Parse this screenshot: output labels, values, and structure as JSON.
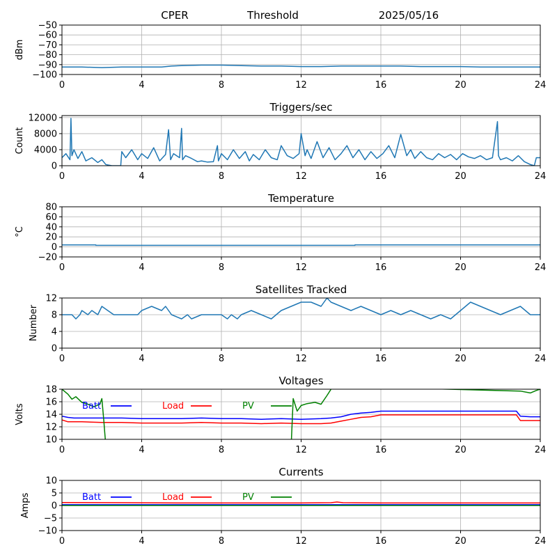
{
  "header": {
    "station": "CPER",
    "mode": "Threshold",
    "date": "2025/05/16"
  },
  "colors": {
    "series_default": "#1f77b4",
    "batt": "#0000ff",
    "load": "#ff0000",
    "pv": "#008000",
    "grid": "#b0b0b0"
  },
  "chart_data": [
    {
      "type": "line",
      "title": "",
      "xlabel": "",
      "ylabel": "dBm",
      "xlim": [
        0,
        24
      ],
      "ylim": [
        -100,
        -50
      ],
      "xticks": [
        0,
        4,
        8,
        12,
        16,
        20,
        24
      ],
      "yticks": [
        -100,
        -90,
        -80,
        -70,
        -60,
        -50
      ],
      "grid": true,
      "series": [
        {
          "color": "#1f77b4",
          "x": [
            0,
            1,
            2,
            3,
            4,
            5,
            5.5,
            6,
            7,
            8,
            9,
            10,
            11,
            12,
            13,
            14,
            15,
            16,
            17,
            18,
            19,
            20,
            21,
            22,
            23,
            24
          ],
          "y": [
            -92.5,
            -92.5,
            -93,
            -92.5,
            -92.5,
            -92.5,
            -91.5,
            -91,
            -90.5,
            -90.5,
            -91,
            -91.5,
            -91.5,
            -92,
            -92,
            -91.5,
            -91.5,
            -91.5,
            -91.5,
            -92,
            -92,
            -92,
            -92.5,
            -92.5,
            -92.5,
            -92.5
          ]
        }
      ]
    },
    {
      "type": "line",
      "title": "Triggers/sec",
      "xlabel": "",
      "ylabel": "Count",
      "xlim": [
        0,
        24
      ],
      "ylim": [
        0,
        12500
      ],
      "xticks": [
        0,
        4,
        8,
        12,
        16,
        20,
        24
      ],
      "yticks": [
        0,
        4000,
        8000,
        12000
      ],
      "grid": true,
      "series": [
        {
          "color": "#1f77b4",
          "x": [
            0,
            0.2,
            0.4,
            0.45,
            0.5,
            0.6,
            0.8,
            1.0,
            1.2,
            1.5,
            1.8,
            2.0,
            2.2,
            2.5,
            2.8,
            2.95,
            3.0,
            3.2,
            3.5,
            3.8,
            4.0,
            4.3,
            4.6,
            4.9,
            5.2,
            5.35,
            5.45,
            5.6,
            5.9,
            6.0,
            6.05,
            6.2,
            6.5,
            6.8,
            7.0,
            7.3,
            7.6,
            7.8,
            7.85,
            8.0,
            8.3,
            8.6,
            8.9,
            9.2,
            9.4,
            9.6,
            9.9,
            10.2,
            10.5,
            10.8,
            11.0,
            11.3,
            11.6,
            11.9,
            12.0,
            12.2,
            12.3,
            12.5,
            12.8,
            13.1,
            13.4,
            13.7,
            14.0,
            14.3,
            14.6,
            14.9,
            15.2,
            15.5,
            15.8,
            16.1,
            16.4,
            16.7,
            17.0,
            17.3,
            17.5,
            17.7,
            18.0,
            18.3,
            18.6,
            18.9,
            19.2,
            19.5,
            19.8,
            20.1,
            20.4,
            20.7,
            21.0,
            21.3,
            21.6,
            21.85,
            21.9,
            22.0,
            22.3,
            22.6,
            22.9,
            23.2,
            23.5,
            23.7,
            23.8,
            24.0
          ],
          "y": [
            2000,
            3000,
            1500,
            11800,
            2500,
            4000,
            1800,
            3500,
            1200,
            2000,
            800,
            1500,
            300,
            0,
            0,
            0,
            3500,
            2000,
            4000,
            1500,
            3000,
            1800,
            4500,
            1200,
            2800,
            9000,
            1500,
            3000,
            2000,
            9300,
            1500,
            2500,
            1800,
            1000,
            1200,
            900,
            1000,
            5000,
            1200,
            3000,
            1500,
            4000,
            1800,
            3500,
            1200,
            2800,
            1500,
            4000,
            2000,
            1500,
            5000,
            2500,
            1800,
            3000,
            8000,
            2500,
            4000,
            1800,
            6000,
            2000,
            4500,
            1500,
            3000,
            5000,
            2000,
            4000,
            1500,
            3500,
            1800,
            3000,
            5000,
            2000,
            7800,
            2500,
            4000,
            1800,
            3500,
            2000,
            1500,
            3000,
            2000,
            2800,
            1500,
            3000,
            2200,
            1800,
            2500,
            1500,
            2000,
            11000,
            2500,
            1500,
            2000,
            1200,
            2500,
            1000,
            300,
            0,
            2000,
            2000
          ]
        }
      ]
    },
    {
      "type": "line",
      "title": "Temperature",
      "xlabel": "",
      "ylabel": "°C",
      "xlim": [
        0,
        24
      ],
      "ylim": [
        -20,
        80
      ],
      "xticks": [
        0,
        4,
        8,
        12,
        16,
        20,
        24
      ],
      "yticks": [
        -20,
        0,
        20,
        40,
        60,
        80
      ],
      "grid": true,
      "series": [
        {
          "color": "#1f77b4",
          "x": [
            0,
            1.7,
            1.7,
            14.7,
            14.7,
            24
          ],
          "y": [
            4,
            4,
            3,
            3,
            4,
            4
          ]
        }
      ]
    },
    {
      "type": "line",
      "title": "Satellites Tracked",
      "xlabel": "",
      "ylabel": "Number",
      "xlim": [
        0,
        24
      ],
      "ylim": [
        0,
        12
      ],
      "xticks": [
        0,
        4,
        8,
        12,
        16,
        20,
        24
      ],
      "yticks": [
        0,
        4,
        8,
        12
      ],
      "grid": true,
      "series": [
        {
          "color": "#1f77b4",
          "x": [
            0,
            0.5,
            0.7,
            0.9,
            1.0,
            1.3,
            1.5,
            1.8,
            2.0,
            2.3,
            2.6,
            3.0,
            3.5,
            3.8,
            4.0,
            4.5,
            5.0,
            5.2,
            5.5,
            6.0,
            6.3,
            6.5,
            7.0,
            7.5,
            8.0,
            8.3,
            8.5,
            8.8,
            9.0,
            9.5,
            10.0,
            10.5,
            11.0,
            11.5,
            12.0,
            12.5,
            13.0,
            13.3,
            13.5,
            14.0,
            14.5,
            15.0,
            15.5,
            16.0,
            16.5,
            17.0,
            17.5,
            18.0,
            18.5,
            19.0,
            19.5,
            20.0,
            20.5,
            21.0,
            21.5,
            22.0,
            22.5,
            23.0,
            23.5,
            24.0
          ],
          "y": [
            8,
            8,
            7,
            8,
            9,
            8,
            9,
            8,
            10,
            9,
            8,
            8,
            8,
            8,
            9,
            10,
            9,
            10,
            8,
            7,
            8,
            7,
            8,
            8,
            8,
            7,
            8,
            7,
            8,
            9,
            8,
            7,
            9,
            10,
            11,
            11,
            10,
            12,
            11,
            10,
            9,
            10,
            9,
            8,
            9,
            8,
            9,
            8,
            7,
            8,
            7,
            9,
            11,
            10,
            9,
            8,
            9,
            10,
            8,
            8
          ]
        }
      ]
    },
    {
      "type": "line",
      "title": "Voltages",
      "xlabel": "",
      "ylabel": "Volts",
      "xlim": [
        0,
        24
      ],
      "ylim": [
        10,
        18
      ],
      "xticks": [
        0,
        4,
        8,
        12,
        16,
        20,
        24
      ],
      "yticks": [
        10,
        12,
        14,
        16,
        18
      ],
      "grid": true,
      "legend": "top-left, inside",
      "series": [
        {
          "name": "Batt",
          "color": "#0000ff",
          "x": [
            0,
            0.3,
            0.6,
            1.0,
            2.0,
            3.0,
            4.0,
            5.0,
            6.0,
            7.0,
            8.0,
            9.0,
            10.0,
            11.0,
            12.0,
            13.0,
            13.5,
            14.0,
            14.5,
            15.0,
            15.5,
            16.0,
            16.5,
            17.0,
            18.0,
            19.0,
            20.0,
            21.0,
            22.0,
            22.8,
            23.0,
            23.5,
            24.0
          ],
          "y": [
            13.7,
            13.5,
            13.4,
            13.4,
            13.4,
            13.4,
            13.3,
            13.3,
            13.3,
            13.4,
            13.3,
            13.3,
            13.2,
            13.3,
            13.2,
            13.3,
            13.4,
            13.6,
            14.0,
            14.2,
            14.3,
            14.5,
            14.5,
            14.5,
            14.5,
            14.5,
            14.5,
            14.5,
            14.5,
            14.5,
            13.7,
            13.6,
            13.6
          ]
        },
        {
          "name": "Load",
          "color": "#ff0000",
          "x": [
            0,
            0.3,
            0.6,
            1.0,
            2.0,
            3.0,
            4.0,
            5.0,
            6.0,
            7.0,
            8.0,
            9.0,
            10.0,
            11.0,
            12.0,
            13.0,
            13.5,
            14.0,
            14.5,
            15.0,
            15.5,
            16.0,
            16.5,
            17.0,
            18.0,
            19.0,
            20.0,
            21.0,
            22.0,
            22.8,
            23.0,
            23.5,
            24.0
          ],
          "y": [
            13.1,
            12.8,
            12.8,
            12.8,
            12.7,
            12.7,
            12.6,
            12.6,
            12.6,
            12.7,
            12.6,
            12.6,
            12.5,
            12.6,
            12.5,
            12.5,
            12.6,
            12.9,
            13.2,
            13.5,
            13.6,
            13.9,
            13.9,
            13.9,
            13.9,
            13.9,
            13.9,
            13.9,
            13.9,
            13.9,
            13.0,
            13.0,
            13.0
          ]
        },
        {
          "name": "PV",
          "color": "#008000",
          "x": [
            0,
            0.3,
            0.5,
            0.7,
            1.0,
            1.3,
            1.6,
            1.9,
            2.0,
            2.1,
            2.15,
            2.2,
            11.5,
            11.6,
            11.8,
            12.0,
            12.3,
            12.7,
            13.0,
            13.3,
            13.6,
            23.0,
            23.5,
            23.8,
            24.0
          ],
          "y": [
            18,
            17.2,
            16.4,
            16.8,
            15.9,
            15.6,
            15.2,
            15.6,
            16.5,
            13.0,
            11.0,
            9.0,
            9.0,
            16.5,
            14.5,
            15.4,
            15.7,
            15.9,
            15.6,
            17.0,
            18.5,
            17.7,
            17.4,
            17.8,
            18.0
          ]
        }
      ]
    },
    {
      "type": "line",
      "title": "Currents",
      "xlabel": "",
      "ylabel": "Amps",
      "xlim": [
        0,
        24
      ],
      "ylim": [
        -10,
        10
      ],
      "xticks": [
        0,
        4,
        8,
        12,
        16,
        20,
        24
      ],
      "yticks": [
        -10,
        -5,
        0,
        5,
        10
      ],
      "grid": true,
      "legend": "top-left, inside",
      "series": [
        {
          "name": "Batt",
          "color": "#0000ff",
          "x": [
            0,
            24
          ],
          "y": [
            0.3,
            0.3
          ]
        },
        {
          "name": "Load",
          "color": "#ff0000",
          "x": [
            0,
            3,
            6,
            9,
            12,
            13.5,
            13.8,
            14.1,
            16,
            20,
            24
          ],
          "y": [
            1.2,
            1.1,
            1.0,
            1.0,
            1.0,
            1.1,
            1.4,
            1.1,
            1.0,
            1.0,
            1.0
          ]
        },
        {
          "name": "PV",
          "color": "#008000",
          "x": [
            0,
            24
          ],
          "y": [
            0,
            0
          ]
        }
      ]
    }
  ]
}
